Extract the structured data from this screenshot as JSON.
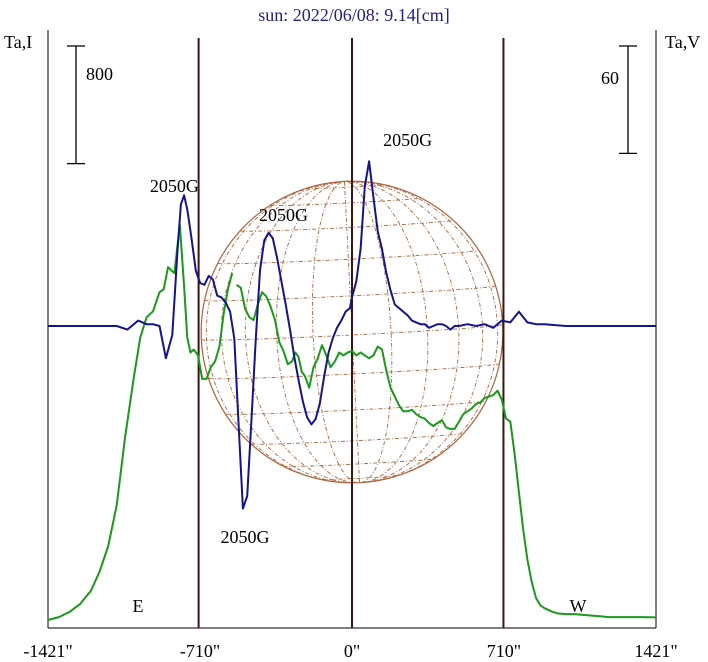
{
  "chart_data": {
    "type": "line",
    "title": "sun: 2022/06/08: 9.14[cm]",
    "ylabel_left": "Ta,I",
    "ylabel_right": "Ta,V",
    "x_unit": "arcsec",
    "xlim": [
      -1421,
      1421
    ],
    "x_ticks": [
      -1421,
      -710,
      0,
      710,
      1421
    ],
    "x_tick_labels": [
      "-1421\"",
      "-710\"",
      "0\"",
      "710\"",
      "1421\""
    ],
    "scale_bar_left": "800",
    "scale_bar_right": "60",
    "limb_labels": {
      "east": "E",
      "west": "W"
    },
    "vertical_markers": [
      -717,
      0,
      708
    ],
    "disk_radius_arcsec": 705,
    "colors": {
      "intensity": "#1a9a1a",
      "polarization": "#14148c",
      "grid": "#b0643c",
      "markers": "#3c1414",
      "title": "#1e1e8c"
    },
    "series": [
      {
        "key": "I",
        "x": [
          -1421,
          -1370,
          -1320,
          -1270,
          -1220,
          -1180,
          -1140,
          -1100,
          -1060,
          -1020,
          -990,
          -960,
          -930,
          -900,
          -880,
          -860,
          -830,
          -805,
          -785,
          -770,
          -755,
          -740,
          -720,
          -700,
          -680,
          -660,
          -640,
          -620,
          -600,
          -580,
          -560,
          -540,
          -520,
          -500,
          -480,
          -460,
          -440,
          -420,
          -400,
          -380,
          -360,
          -340,
          -320,
          -300,
          -280,
          -265,
          -250,
          -235,
          -220,
          -200,
          -180,
          -160,
          -140,
          -120,
          -100,
          -80,
          -60,
          -40,
          -20,
          0,
          20,
          40,
          60,
          80,
          100,
          120,
          140,
          160,
          180,
          200,
          220,
          240,
          260,
          280,
          300,
          320,
          340,
          360,
          380,
          400,
          420,
          440,
          460,
          480,
          500,
          520,
          540,
          560,
          580,
          600,
          620,
          640,
          660,
          680,
          700,
          720,
          740,
          760,
          780,
          800,
          820,
          840,
          860,
          880,
          900,
          930,
          960,
          1000,
          1040,
          1080,
          1120,
          1160,
          1200,
          1250,
          1300,
          1350,
          1421
        ],
        "y": [
          0,
          20,
          55,
          110,
          200,
          330,
          500,
          780,
          1250,
          1650,
          1920,
          2060,
          2100,
          2230,
          2250,
          2400,
          2360,
          2690,
          2270,
          1920,
          1820,
          1840,
          1800,
          1640,
          1640,
          1720,
          1760,
          1860,
          2080,
          2250,
          2360,
          2280,
          2260,
          2120,
          2060,
          2040,
          2150,
          2230,
          2200,
          2130,
          2040,
          1890,
          1830,
          1740,
          1760,
          1820,
          1790,
          1690,
          1660,
          1580,
          1720,
          1780,
          1870,
          1800,
          1720,
          1760,
          1820,
          1800,
          1820,
          1830,
          1800,
          1820,
          1800,
          1780,
          1800,
          1860,
          1840,
          1700,
          1580,
          1520,
          1460,
          1420,
          1420,
          1430,
          1400,
          1380,
          1370,
          1340,
          1320,
          1340,
          1360,
          1310,
          1300,
          1300,
          1350,
          1400,
          1420,
          1440,
          1470,
          1480,
          1510,
          1520,
          1530,
          1560,
          1500,
          1370,
          1350,
          1130,
          870,
          620,
          410,
          260,
          150,
          100,
          80,
          60,
          45,
          40,
          40,
          35,
          30,
          25,
          20,
          20,
          20,
          20,
          18
        ],
        "breaks_before": [
          -540,
          -240
        ]
      },
      {
        "key": "V",
        "x": [
          -1421,
          -1300,
          -1200,
          -1100,
          -1050,
          -1000,
          -960,
          -930,
          -900,
          -870,
          -840,
          -815,
          -800,
          -785,
          -770,
          -750,
          -730,
          -710,
          -690,
          -670,
          -650,
          -630,
          -610,
          -590,
          -570,
          -550,
          -530,
          -510,
          -490,
          -470,
          -450,
          -430,
          -410,
          -390,
          -370,
          -350,
          -330,
          -310,
          -290,
          -270,
          -250,
          -230,
          -210,
          -190,
          -170,
          -150,
          -130,
          -110,
          -90,
          -70,
          -50,
          -30,
          -10,
          0,
          20,
          40,
          60,
          80,
          100,
          120,
          140,
          160,
          180,
          200,
          220,
          240,
          260,
          280,
          300,
          320,
          340,
          360,
          380,
          400,
          420,
          440,
          460,
          480,
          500,
          540,
          580,
          620,
          660,
          700,
          740,
          780,
          820,
          860,
          900,
          1000,
          1100,
          1200,
          1300,
          1421
        ],
        "y": [
          0,
          0,
          0,
          0,
          -2,
          3,
          1,
          1,
          0,
          -18,
          -5,
          43,
          68,
          73,
          65,
          49,
          31,
          24,
          23,
          28,
          26,
          17,
          16,
          13,
          8,
          -7,
          -55,
          -102,
          -95,
          -52,
          -8,
          31,
          48,
          52,
          49,
          38,
          25,
          12,
          -2,
          -17,
          -30,
          -42,
          -51,
          -55,
          -52,
          -43,
          -28,
          -15,
          -7,
          -1,
          3,
          8,
          10,
          16,
          25,
          43,
          78,
          92,
          72,
          53,
          43,
          30,
          20,
          12,
          10,
          8,
          6,
          3,
          2,
          1,
          1,
          -1,
          0,
          1,
          1,
          0,
          -2,
          0,
          0,
          1,
          0,
          1,
          -1,
          3,
          2,
          8,
          2,
          1,
          1,
          0,
          0,
          0,
          0,
          0
        ]
      }
    ],
    "annotations": [
      {
        "text": "2050G",
        "x": -830,
        "series": "I"
      },
      {
        "text": "2050G",
        "x": -320,
        "series": "I"
      },
      {
        "text": "2050G",
        "x": 260,
        "series": "V"
      },
      {
        "text": "2050G",
        "x": -500,
        "series": "V"
      }
    ]
  }
}
